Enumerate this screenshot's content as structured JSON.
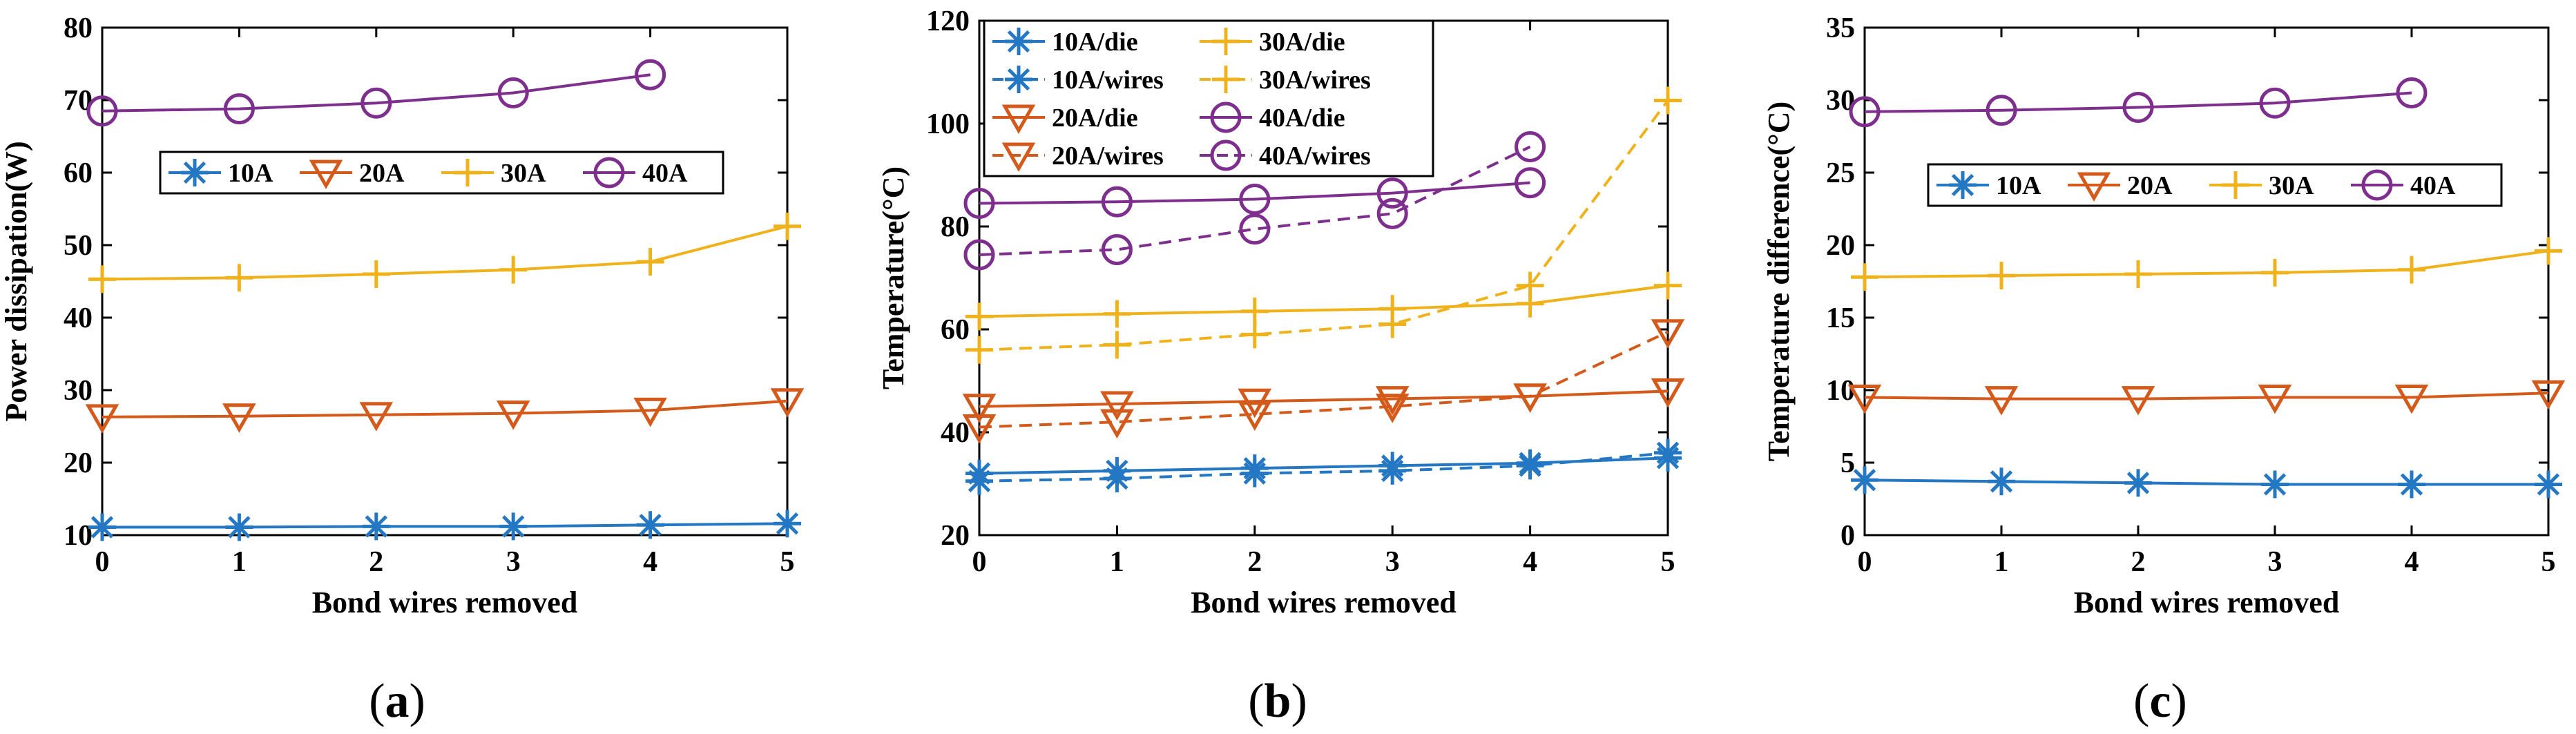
{
  "colors": {
    "10A": "#2477c3",
    "20A": "#d45a1c",
    "30A": "#efb21b",
    "40A": "#7e2f8e",
    "axis": "#000000"
  },
  "chart_data": [
    {
      "panel": "a",
      "caption": {
        "open": "(",
        "letter": "a",
        "close": ")"
      },
      "type": "line",
      "xlabel": "Bond wires removed",
      "ylabel": "Power dissipation(W)",
      "xlim": [
        0,
        5
      ],
      "ylim": [
        10,
        80
      ],
      "xticks": [
        "0",
        "1",
        "2",
        "3",
        "4",
        "5"
      ],
      "yticks": [
        "10",
        "20",
        "30",
        "40",
        "50",
        "60",
        "70",
        "80"
      ],
      "legend": {
        "position": "center-left",
        "entries": [
          "10A",
          "20A",
          "30A",
          "40A"
        ]
      },
      "series": [
        {
          "name": "10A",
          "marker": "asterisk",
          "style": "solid",
          "x": [
            0,
            1,
            2,
            3,
            4,
            5
          ],
          "values": [
            11.1,
            11.1,
            11.2,
            11.2,
            11.4,
            11.6
          ]
        },
        {
          "name": "20A",
          "marker": "triangle-down",
          "style": "solid",
          "x": [
            0,
            1,
            2,
            3,
            4,
            5
          ],
          "values": [
            26.3,
            26.4,
            26.6,
            26.8,
            27.2,
            28.5
          ]
        },
        {
          "name": "30A",
          "marker": "plus",
          "style": "solid",
          "x": [
            0,
            1,
            2,
            3,
            4,
            5
          ],
          "values": [
            45.3,
            45.5,
            46.0,
            46.6,
            47.7,
            52.6
          ]
        },
        {
          "name": "40A",
          "marker": "circle",
          "style": "solid",
          "x": [
            0,
            1,
            2,
            3,
            4
          ],
          "values": [
            68.5,
            68.8,
            69.6,
            71.0,
            73.5
          ]
        }
      ]
    },
    {
      "panel": "b",
      "caption": {
        "open": "(",
        "letter": "b",
        "close": ")"
      },
      "type": "line",
      "xlabel": "Bond wires removed",
      "ylabel": "Temperature(°C)",
      "xlim": [
        0,
        5
      ],
      "ylim": [
        20,
        120
      ],
      "xticks": [
        "0",
        "1",
        "2",
        "3",
        "4",
        "5"
      ],
      "yticks": [
        "20",
        "40",
        "60",
        "80",
        "100",
        "120"
      ],
      "legend": {
        "position": "top-left",
        "entries": [
          "10A/die",
          "30A/die",
          "10A/wires",
          "30A/wires",
          "20A/die",
          "40A/die",
          "20A/wires",
          "40A/wires"
        ]
      },
      "series": [
        {
          "name": "10A/die",
          "color": "10A",
          "marker": "asterisk",
          "style": "solid",
          "x": [
            0,
            1,
            2,
            3,
            4,
            5
          ],
          "values": [
            32.0,
            32.5,
            33.0,
            33.5,
            34.0,
            35.0
          ]
        },
        {
          "name": "10A/wires",
          "color": "10A",
          "marker": "asterisk",
          "style": "dashed",
          "x": [
            0,
            1,
            2,
            3,
            4,
            5
          ],
          "values": [
            30.5,
            31.0,
            32.0,
            32.5,
            33.5,
            36.0
          ]
        },
        {
          "name": "20A/die",
          "color": "20A",
          "marker": "triangle-down",
          "style": "solid",
          "x": [
            0,
            1,
            2,
            3,
            4,
            5
          ],
          "values": [
            45.0,
            45.5,
            46.0,
            46.5,
            47.0,
            48.0
          ]
        },
        {
          "name": "20A/wires",
          "color": "20A",
          "marker": "triangle-down",
          "style": "dashed",
          "x": [
            0,
            1,
            2,
            3,
            4,
            5
          ],
          "values": [
            41.0,
            42.0,
            43.5,
            45.0,
            47.0,
            59.5
          ]
        },
        {
          "name": "30A/die",
          "color": "30A",
          "marker": "plus",
          "style": "solid",
          "x": [
            0,
            1,
            2,
            3,
            4,
            5
          ],
          "values": [
            62.5,
            63.0,
            63.5,
            64.0,
            65.0,
            68.5
          ]
        },
        {
          "name": "30A/wires",
          "color": "30A",
          "marker": "plus",
          "style": "dashed",
          "x": [
            0,
            1,
            2,
            3,
            4,
            5
          ],
          "values": [
            56.0,
            57.0,
            59.0,
            61.0,
            68.5,
            104.5
          ]
        },
        {
          "name": "40A/die",
          "color": "40A",
          "marker": "circle",
          "style": "solid",
          "x": [
            0,
            1,
            2,
            3,
            4
          ],
          "values": [
            84.5,
            84.8,
            85.3,
            86.5,
            88.5
          ]
        },
        {
          "name": "40A/wires",
          "color": "40A",
          "marker": "circle",
          "style": "dashed",
          "x": [
            0,
            1,
            2,
            3,
            4
          ],
          "values": [
            74.5,
            75.5,
            79.5,
            82.5,
            95.5
          ]
        }
      ]
    },
    {
      "panel": "c",
      "caption": {
        "open": "(",
        "letter": "c",
        "close": ")"
      },
      "type": "line",
      "xlabel": "Bond wires removed",
      "ylabel": "Temperature difference(°C)",
      "xlim": [
        0,
        5
      ],
      "ylim": [
        0,
        35
      ],
      "xticks": [
        "0",
        "1",
        "2",
        "3",
        "4",
        "5"
      ],
      "yticks": [
        "0",
        "5",
        "10",
        "15",
        "20",
        "25",
        "30",
        "35"
      ],
      "legend": {
        "position": "center-left",
        "entries": [
          "10A",
          "20A",
          "30A",
          "40A"
        ]
      },
      "series": [
        {
          "name": "10A",
          "marker": "asterisk",
          "style": "solid",
          "x": [
            0,
            1,
            2,
            3,
            4,
            5
          ],
          "values": [
            3.8,
            3.7,
            3.6,
            3.5,
            3.5,
            3.5
          ]
        },
        {
          "name": "20A",
          "marker": "triangle-down",
          "style": "solid",
          "x": [
            0,
            1,
            2,
            3,
            4,
            5
          ],
          "values": [
            9.5,
            9.4,
            9.4,
            9.5,
            9.5,
            9.8
          ]
        },
        {
          "name": "30A",
          "marker": "plus",
          "style": "solid",
          "x": [
            0,
            1,
            2,
            3,
            4,
            5
          ],
          "values": [
            17.8,
            17.9,
            18.0,
            18.1,
            18.3,
            19.6
          ]
        },
        {
          "name": "40A",
          "marker": "circle",
          "style": "solid",
          "x": [
            0,
            1,
            2,
            3,
            4
          ],
          "values": [
            29.2,
            29.3,
            29.5,
            29.8,
            30.5
          ]
        }
      ]
    }
  ]
}
